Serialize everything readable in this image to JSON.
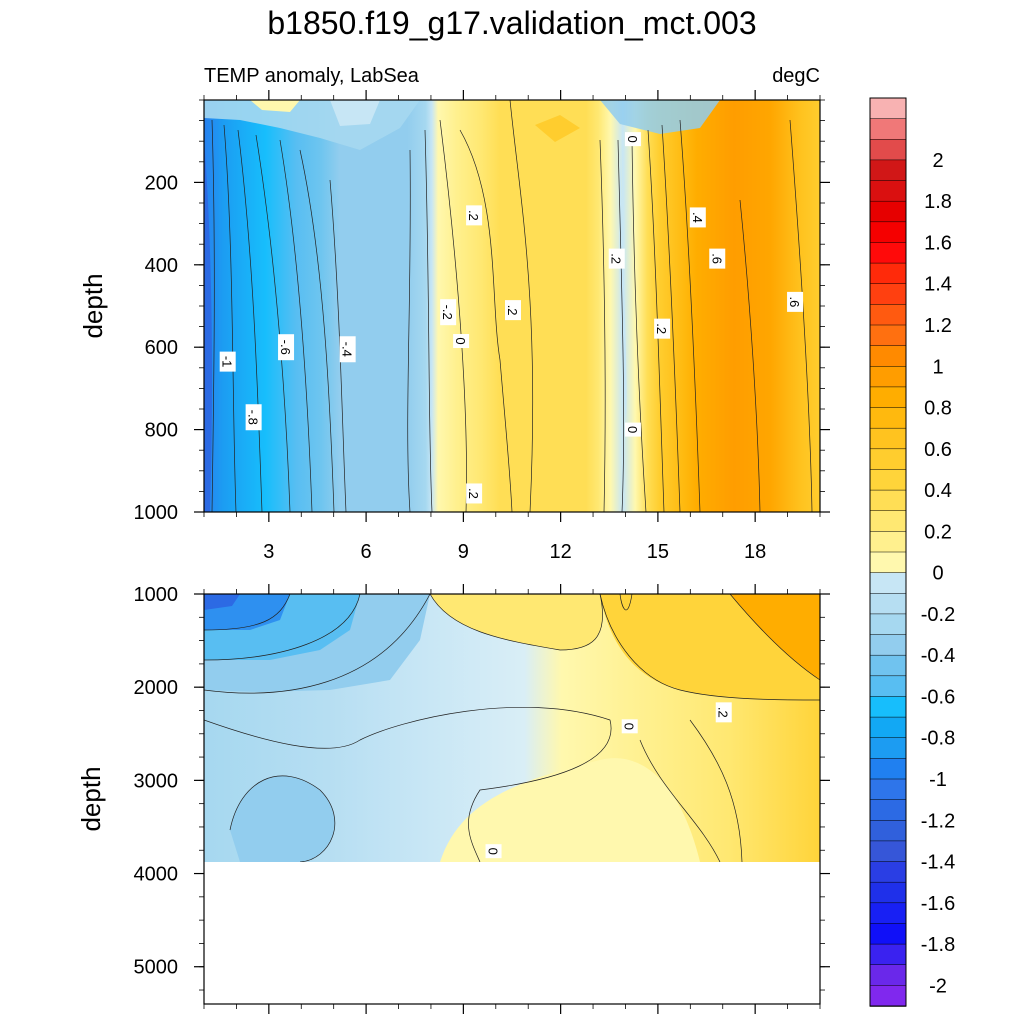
{
  "title": "b1850.f19_g17.validation_mct.003",
  "chart_data": [
    {
      "type": "contour",
      "panel": "upper",
      "left_label": "TEMP anomaly, LabSea",
      "right_label": "degC",
      "ylabel": "depth",
      "xlabel": "",
      "xlim": [
        1,
        20
      ],
      "ylim": [
        1000,
        0
      ],
      "x_ticks": [
        3,
        6,
        9,
        12,
        15,
        18
      ],
      "x_tick_labels": [
        "3",
        "6",
        "9",
        "12",
        "15",
        "18"
      ],
      "y_ticks": [
        200,
        400,
        600,
        800,
        1000
      ],
      "y_tick_labels": [
        "200",
        "400",
        "600",
        "800",
        "1000"
      ],
      "contour_labels": [
        {
          "text": "-1",
          "x": 1.7,
          "y": 635
        },
        {
          "text": "-.8",
          "x": 2.5,
          "y": 770
        },
        {
          "text": "-.6",
          "x": 3.5,
          "y": 600
        },
        {
          "text": "-.4",
          "x": 5.4,
          "y": 605
        },
        {
          "text": "-.2",
          "x": 8.5,
          "y": 515
        },
        {
          "text": "0",
          "x": 8.9,
          "y": 585
        },
        {
          "text": ".2",
          "x": 9.3,
          "y": 280
        },
        {
          "text": ".2",
          "x": 10.5,
          "y": 510
        },
        {
          "text": ".2",
          "x": 9.3,
          "y": 955
        },
        {
          "text": "0",
          "x": 14.2,
          "y": 95
        },
        {
          "text": ".2",
          "x": 13.7,
          "y": 385
        },
        {
          "text": ".2",
          "x": 15.1,
          "y": 555
        },
        {
          "text": "0",
          "x": 14.2,
          "y": 800
        },
        {
          "text": ".4",
          "x": 16.2,
          "y": 285
        },
        {
          "text": ".6",
          "x": 16.8,
          "y": 385
        },
        {
          "text": ".6",
          "x": 19.2,
          "y": 490
        }
      ],
      "grid": false
    },
    {
      "type": "contour",
      "panel": "lower",
      "ylabel": "depth",
      "xlabel": "",
      "xlim": [
        1,
        20
      ],
      "ylim": [
        5400,
        1000
      ],
      "data_bottom_depth": 3850,
      "y_ticks": [
        1000,
        2000,
        3000,
        4000,
        5000
      ],
      "y_tick_labels": [
        "1000",
        "2000",
        "3000",
        "4000",
        "5000"
      ],
      "contour_labels": [
        {
          "text": "0",
          "x": 14.1,
          "y": 2420
        },
        {
          "text": ".2",
          "x": 17.0,
          "y": 2270
        },
        {
          "text": "0",
          "x": 9.9,
          "y": 3760
        }
      ],
      "grid": false
    }
  ],
  "colorbar": {
    "orientation": "vertical",
    "range": [
      -2.1,
      2.3
    ],
    "tick_values": [
      2,
      1.8,
      1.6,
      1.4,
      1.2,
      1,
      0.8,
      0.6,
      0.4,
      0.2,
      0,
      -0.2,
      -0.4,
      -0.6,
      -0.8,
      -1,
      -1.2,
      -1.4,
      -1.6,
      -1.8,
      -2
    ],
    "tick_labels": [
      "2",
      "1.8",
      "1.6",
      "1.4",
      "1.2",
      "1",
      "0.8",
      "0.6",
      "0.4",
      "0.2",
      "0",
      "-0.2",
      "-0.4",
      "-0.6",
      "-0.8",
      "-1",
      "-1.2",
      "-1.4",
      "-1.6",
      "-1.8",
      "-2"
    ],
    "colors_top_to_bottom": [
      "#f8b2b2",
      "#f07878",
      "#e24b4b",
      "#d11717",
      "#da1010",
      "#e60000",
      "#f50000",
      "#ff0a0a",
      "#ff2a0a",
      "#ff4010",
      "#ff5a10",
      "#ff7010",
      "#ff8a00",
      "#ff9d00",
      "#ffad00",
      "#ffb90e",
      "#ffc31f",
      "#ffcd2e",
      "#ffd43a",
      "#ffde55",
      "#ffe872",
      "#fff08e",
      "#fff8ae",
      "#c7e6f5",
      "#b6def2",
      "#a6d8f0",
      "#92cdee",
      "#70c3ef",
      "#58bef2",
      "#17befc",
      "#12a8f4",
      "#1c9cf2",
      "#2080f0",
      "#2e75ea",
      "#2c6ae4",
      "#3060dc",
      "#3656d8",
      "#2a3ee4",
      "#1f30ea",
      "#1820f4",
      "#1010f8",
      "#3a22f0",
      "#6a28ea",
      "#8028ee"
    ]
  }
}
